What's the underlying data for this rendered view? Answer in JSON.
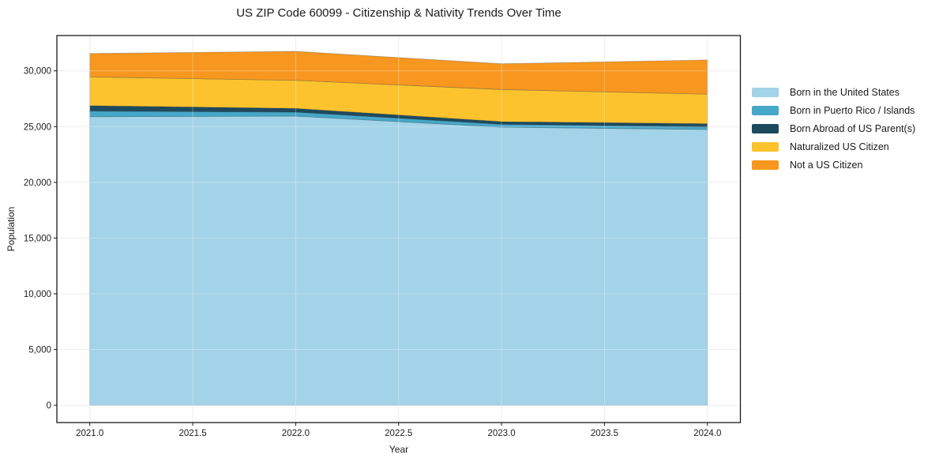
{
  "chart_data": {
    "type": "area",
    "stacked": true,
    "title": "US ZIP Code 60099 - Citizenship & Nativity Trends Over Time",
    "xlabel": "Year",
    "ylabel": "Population",
    "x": [
      2021,
      2022,
      2023,
      2024
    ],
    "series": [
      {
        "name": "Born in the United States",
        "color": "#A3D3E8",
        "values": [
          25890,
          25940,
          24950,
          24740
        ]
      },
      {
        "name": "Born in Puerto Rico / Islands",
        "color": "#46A8C8",
        "values": [
          500,
          360,
          260,
          230
        ]
      },
      {
        "name": "Born Abroad of US Parent(s)",
        "color": "#1E4A5E",
        "values": [
          490,
          330,
          240,
          290
        ]
      },
      {
        "name": "Naturalized US Citizen",
        "color": "#FDC32E",
        "values": [
          2580,
          2520,
          2880,
          2650
        ]
      },
      {
        "name": "Not a US Citizen",
        "color": "#F8971F",
        "values": [
          2100,
          2600,
          2310,
          3070
        ]
      }
    ],
    "xlim": [
      2020.84,
      2024.16
    ],
    "ylim": [
      -1550,
      33170
    ],
    "x_ticks": [
      2021.0,
      2021.5,
      2022.0,
      2022.5,
      2023.0,
      2023.5,
      2024.0
    ],
    "y_ticks": [
      0,
      5000,
      10000,
      15000,
      20000,
      25000,
      30000
    ],
    "grid": true,
    "legend_position": "right",
    "colors": {
      "spine": "#1a1a1a",
      "grid_under": "#e7e7e7",
      "grid_over": "rgba(255,255,255,0.30)",
      "background": "#ffffff"
    }
  }
}
